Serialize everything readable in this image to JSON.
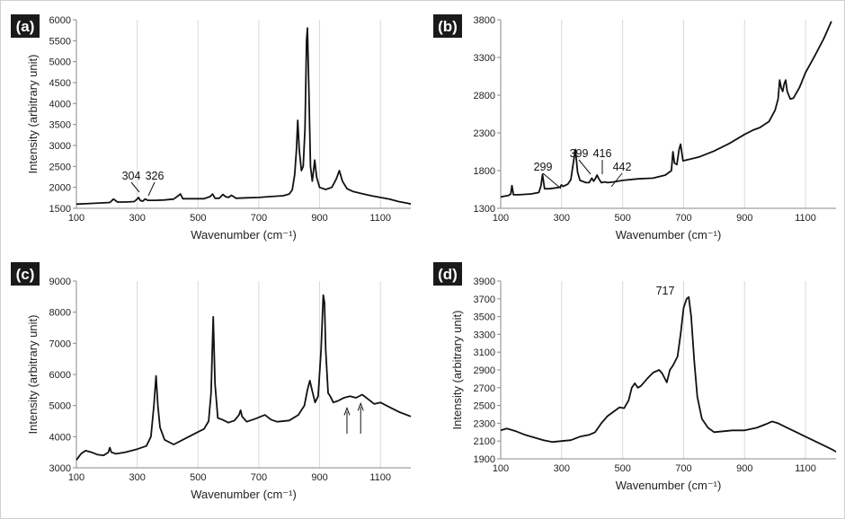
{
  "chart_data": [
    {
      "type": "line",
      "panel_label": "(a)",
      "xlabel": "Wavenumber (cm⁻¹)",
      "ylabel": "Intensity (arbitrary unit)",
      "xlim": [
        100,
        1200
      ],
      "ylim": [
        1500,
        6000
      ],
      "x_ticks": [
        100,
        300,
        500,
        700,
        900,
        1100
      ],
      "y_ticks": [
        1500,
        2000,
        2500,
        3000,
        3500,
        4000,
        4500,
        5000,
        5500,
        6000
      ],
      "grid": "vertical",
      "series": [
        {
          "x": [
            100,
            130,
            160,
            190,
            210,
            222,
            235,
            260,
            290,
            300,
            304,
            310,
            318,
            326,
            335,
            360,
            390,
            420,
            435,
            442,
            450,
            480,
            520,
            540,
            548,
            556,
            570,
            582,
            590,
            600,
            610,
            625,
            660,
            700,
            740,
            780,
            800,
            810,
            818,
            824,
            828,
            833,
            840,
            846,
            852,
            857,
            860,
            864,
            870,
            876,
            880,
            884,
            890,
            900,
            920,
            940,
            955,
            965,
            975,
            990,
            1010,
            1040,
            1070,
            1100,
            1130,
            1160,
            1190,
            1200
          ],
          "y": [
            1600,
            1610,
            1620,
            1630,
            1640,
            1720,
            1650,
            1650,
            1660,
            1720,
            1760,
            1690,
            1670,
            1720,
            1690,
            1690,
            1700,
            1720,
            1800,
            1840,
            1730,
            1730,
            1730,
            1780,
            1840,
            1740,
            1740,
            1830,
            1780,
            1760,
            1810,
            1740,
            1750,
            1760,
            1780,
            1800,
            1840,
            1940,
            2300,
            2900,
            3600,
            2900,
            2400,
            2500,
            3400,
            5500,
            5800,
            4500,
            2500,
            2150,
            2400,
            2650,
            2250,
            2000,
            1950,
            2000,
            2200,
            2400,
            2150,
            1970,
            1900,
            1850,
            1800,
            1760,
            1720,
            1660,
            1620,
            1600
          ]
        }
      ],
      "annotations": [
        {
          "text": "304",
          "x": 304,
          "y": 1760
        },
        {
          "text": "326",
          "x": 326,
          "y": 1720
        }
      ]
    },
    {
      "type": "line",
      "panel_label": "(b)",
      "xlabel": "Wavenumber (cm⁻¹)",
      "ylabel": "",
      "xlim": [
        100,
        1200
      ],
      "ylim": [
        1300,
        3800
      ],
      "x_ticks": [
        100,
        300,
        500,
        700,
        900,
        1100
      ],
      "y_ticks": [
        1300,
        1800,
        2300,
        2800,
        3300,
        3800
      ],
      "grid": "vertical",
      "series": [
        {
          "x": [
            100,
            110,
            125,
            133,
            137,
            142,
            160,
            200,
            225,
            232,
            237,
            244,
            260,
            280,
            295,
            299,
            305,
            320,
            330,
            340,
            345,
            352,
            360,
            380,
            390,
            399,
            405,
            410,
            416,
            422,
            430,
            442,
            450,
            470,
            500,
            550,
            600,
            640,
            660,
            665,
            670,
            678,
            685,
            690,
            698,
            720,
            750,
            800,
            850,
            900,
            930,
            950,
            980,
            1000,
            1010,
            1015,
            1020,
            1025,
            1030,
            1035,
            1040,
            1050,
            1060,
            1080,
            1100,
            1130,
            1160,
            1185
          ],
          "y": [
            1450,
            1460,
            1470,
            1490,
            1600,
            1480,
            1480,
            1490,
            1510,
            1600,
            1750,
            1560,
            1560,
            1570,
            1580,
            1610,
            1590,
            1620,
            1680,
            1950,
            2080,
            1780,
            1670,
            1640,
            1640,
            1700,
            1660,
            1690,
            1740,
            1690,
            1640,
            1650,
            1640,
            1650,
            1670,
            1690,
            1700,
            1740,
            1800,
            2050,
            1900,
            1880,
            2080,
            2150,
            1930,
            1950,
            1980,
            2060,
            2160,
            2280,
            2340,
            2370,
            2450,
            2600,
            2750,
            3000,
            2900,
            2850,
            2950,
            3000,
            2850,
            2750,
            2760,
            2900,
            3100,
            3320,
            3550,
            3780
          ]
        }
      ],
      "annotations": [
        {
          "text": "299",
          "x": 299,
          "y": 1610
        },
        {
          "text": "399",
          "x": 399,
          "y": 1700
        },
        {
          "text": "416",
          "x": 416,
          "y": 1740
        },
        {
          "text": "442",
          "x": 442,
          "y": 1650
        }
      ]
    },
    {
      "type": "line",
      "panel_label": "(c)",
      "xlabel": "Wavenumber (cm⁻¹)",
      "ylabel": "Intensity (arbitrary unit)",
      "xlim": [
        100,
        1200
      ],
      "ylim": [
        3000,
        9000
      ],
      "x_ticks": [
        100,
        300,
        500,
        700,
        900,
        1100
      ],
      "y_ticks": [
        3000,
        4000,
        5000,
        6000,
        7000,
        8000,
        9000
      ],
      "grid": "vertical",
      "series": [
        {
          "x": [
            100,
            115,
            130,
            150,
            170,
            190,
            205,
            210,
            215,
            230,
            260,
            300,
            330,
            345,
            355,
            362,
            368,
            375,
            390,
            420,
            460,
            500,
            520,
            535,
            543,
            550,
            556,
            565,
            580,
            600,
            620,
            635,
            640,
            645,
            660,
            690,
            720,
            740,
            760,
            800,
            830,
            850,
            860,
            868,
            875,
            885,
            895,
            905,
            912,
            916,
            920,
            928,
            935,
            945,
            960,
            980,
            1000,
            1020,
            1040,
            1060,
            1080,
            1100,
            1130,
            1160,
            1200
          ],
          "y": [
            3250,
            3450,
            3550,
            3500,
            3420,
            3400,
            3500,
            3650,
            3500,
            3450,
            3500,
            3600,
            3700,
            4000,
            5000,
            5950,
            5000,
            4300,
            3900,
            3750,
            3950,
            4150,
            4250,
            4500,
            5400,
            7850,
            5700,
            4600,
            4550,
            4450,
            4520,
            4700,
            4850,
            4650,
            4480,
            4580,
            4700,
            4550,
            4480,
            4520,
            4700,
            5000,
            5500,
            5800,
            5500,
            5100,
            5300,
            6800,
            8550,
            8300,
            6800,
            5400,
            5300,
            5100,
            5150,
            5250,
            5300,
            5250,
            5350,
            5200,
            5050,
            5100,
            4950,
            4800,
            4650
          ]
        }
      ],
      "annotations": [
        {
          "text": "",
          "x": 990,
          "y": 5150
        },
        {
          "text": "",
          "x": 1035,
          "y": 5300
        }
      ]
    },
    {
      "type": "line",
      "panel_label": "(d)",
      "xlabel": "Wavenumber (cm⁻¹)",
      "ylabel": "Intensity (arbitrary unit)",
      "xlim": [
        100,
        1200
      ],
      "ylim": [
        1900,
        3900
      ],
      "x_ticks": [
        100,
        300,
        500,
        700,
        900,
        1100
      ],
      "y_ticks": [
        1900,
        2100,
        2300,
        2500,
        2700,
        2900,
        3100,
        3300,
        3500,
        3700,
        3900
      ],
      "grid": "vertical",
      "series": [
        {
          "x": [
            100,
            120,
            150,
            180,
            210,
            240,
            270,
            300,
            330,
            360,
            390,
            410,
            430,
            450,
            470,
            490,
            505,
            520,
            530,
            540,
            550,
            560,
            580,
            600,
            620,
            630,
            645,
            655,
            665,
            680,
            690,
            700,
            710,
            717,
            725,
            735,
            745,
            760,
            780,
            800,
            830,
            860,
            900,
            940,
            970,
            990,
            1010,
            1040,
            1070,
            1100,
            1130,
            1160,
            1190,
            1200
          ],
          "y": [
            2220,
            2240,
            2210,
            2170,
            2140,
            2110,
            2090,
            2100,
            2110,
            2150,
            2170,
            2200,
            2300,
            2380,
            2430,
            2480,
            2470,
            2560,
            2700,
            2750,
            2700,
            2720,
            2800,
            2870,
            2900,
            2860,
            2760,
            2900,
            2950,
            3050,
            3300,
            3600,
            3700,
            3720,
            3500,
            3000,
            2600,
            2350,
            2250,
            2200,
            2210,
            2220,
            2220,
            2250,
            2290,
            2320,
            2300,
            2250,
            2200,
            2150,
            2100,
            2050,
            2000,
            1980
          ]
        }
      ],
      "annotations": [
        {
          "text": "717",
          "x": 717,
          "y": 3720
        }
      ]
    }
  ]
}
